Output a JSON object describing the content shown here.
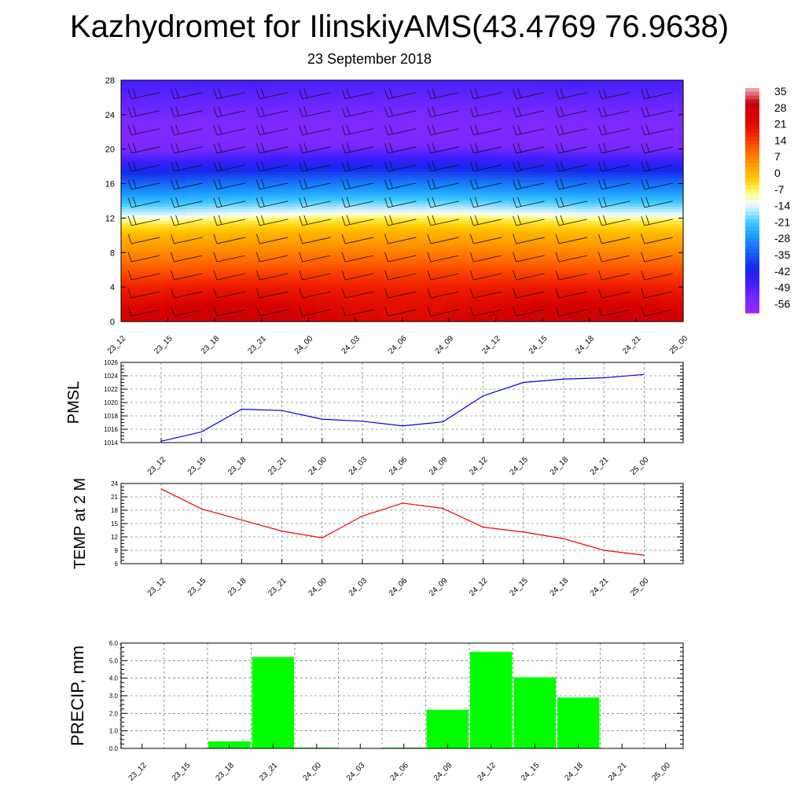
{
  "title": "Kazhydromet for IlinskiyAMS(43.4769 76.9638)",
  "subtitle": "23 September 2018",
  "chart_data": [
    {
      "type": "heatmap",
      "name": "vertical cross-section: temperature shading with wind barbs",
      "xlabel": "",
      "ylabel": "",
      "x_ticks": [
        "23_12",
        "23_15",
        "23_18",
        "23_21",
        "24_00",
        "24_03",
        "24_06",
        "24_09",
        "24_12",
        "24_15",
        "24_18",
        "24_21",
        "25_00"
      ],
      "y_ticks": [
        0,
        4,
        8,
        12,
        16,
        20,
        24,
        28
      ],
      "ylim": [
        0,
        28
      ],
      "colorbar_labels": [
        "35",
        "28",
        "21",
        "14",
        "7",
        "0",
        "-7",
        "-14",
        "-21",
        "-28",
        "-35",
        "-42",
        "-49",
        "-56"
      ],
      "colorbar_range": [
        -63,
        42
      ],
      "temperature_profile": {
        "levels": [
          0,
          2,
          4,
          6,
          8,
          10,
          11.5,
          12.5,
          14,
          16,
          18,
          20,
          22,
          24,
          26,
          28
        ],
        "values": [
          29,
          26,
          21,
          15,
          9,
          3,
          -4,
          -13,
          -22,
          -33,
          -45,
          -56,
          -58,
          -56,
          -53,
          -50
        ]
      },
      "freezing_level_km": [
        11.3,
        11.3,
        11.5,
        11.6,
        11.7,
        11.8,
        11.8,
        11.8,
        11.7,
        11.6,
        11.5,
        11.5,
        11.5
      ],
      "grid": false
    },
    {
      "type": "line",
      "ylabel": "PMSL",
      "xlabel": "",
      "categories": [
        "23_12",
        "23_15",
        "23_18",
        "23_21",
        "24_00",
        "24_03",
        "24_06",
        "24_09",
        "24_12",
        "24_15",
        "24_18",
        "24_21",
        "25_00"
      ],
      "values": [
        1014.2,
        1015.6,
        1019.0,
        1018.8,
        1017.5,
        1017.2,
        1016.5,
        1017.1,
        1021.0,
        1023.0,
        1023.5,
        1023.7,
        1024.2
      ],
      "ylim": [
        1014,
        1026
      ],
      "y_ticks": [
        1014,
        1016,
        1018,
        1020,
        1022,
        1024,
        1026
      ],
      "color": "#0000dd",
      "grid": true
    },
    {
      "type": "line",
      "ylabel": "TEMP at 2 M",
      "xlabel": "",
      "categories": [
        "23_12",
        "23_15",
        "23_18",
        "23_21",
        "24_00",
        "24_03",
        "24_06",
        "24_09",
        "24_12",
        "24_15",
        "24_18",
        "24_21",
        "25_00"
      ],
      "values": [
        22.8,
        18.3,
        15.8,
        13.3,
        11.8,
        16.7,
        19.6,
        18.4,
        14.2,
        13.1,
        11.6,
        9.0,
        7.9
      ],
      "ylim": [
        6,
        24
      ],
      "y_ticks": [
        6,
        9,
        12,
        15,
        18,
        21,
        24
      ],
      "color": "#ee0000",
      "grid": true
    },
    {
      "type": "bar",
      "ylabel": "PRECIP, mm",
      "xlabel": "",
      "categories": [
        "23_12",
        "23_15",
        "23_18",
        "23_21",
        "24_00",
        "24_03",
        "24_06",
        "24_09",
        "24_12",
        "24_15",
        "24_18",
        "24_21",
        "25_00"
      ],
      "values": [
        0.0,
        0.0,
        0.4,
        5.2,
        0.05,
        0.0,
        0.05,
        2.2,
        5.5,
        4.05,
        2.9,
        0.0,
        0.0
      ],
      "ylim": [
        0,
        6
      ],
      "y_ticks": [
        "0.0",
        "1.0",
        "2.0",
        "3.0",
        "4.0",
        "5.0",
        "6.0"
      ],
      "color": "#00ff00",
      "grid": true
    }
  ]
}
